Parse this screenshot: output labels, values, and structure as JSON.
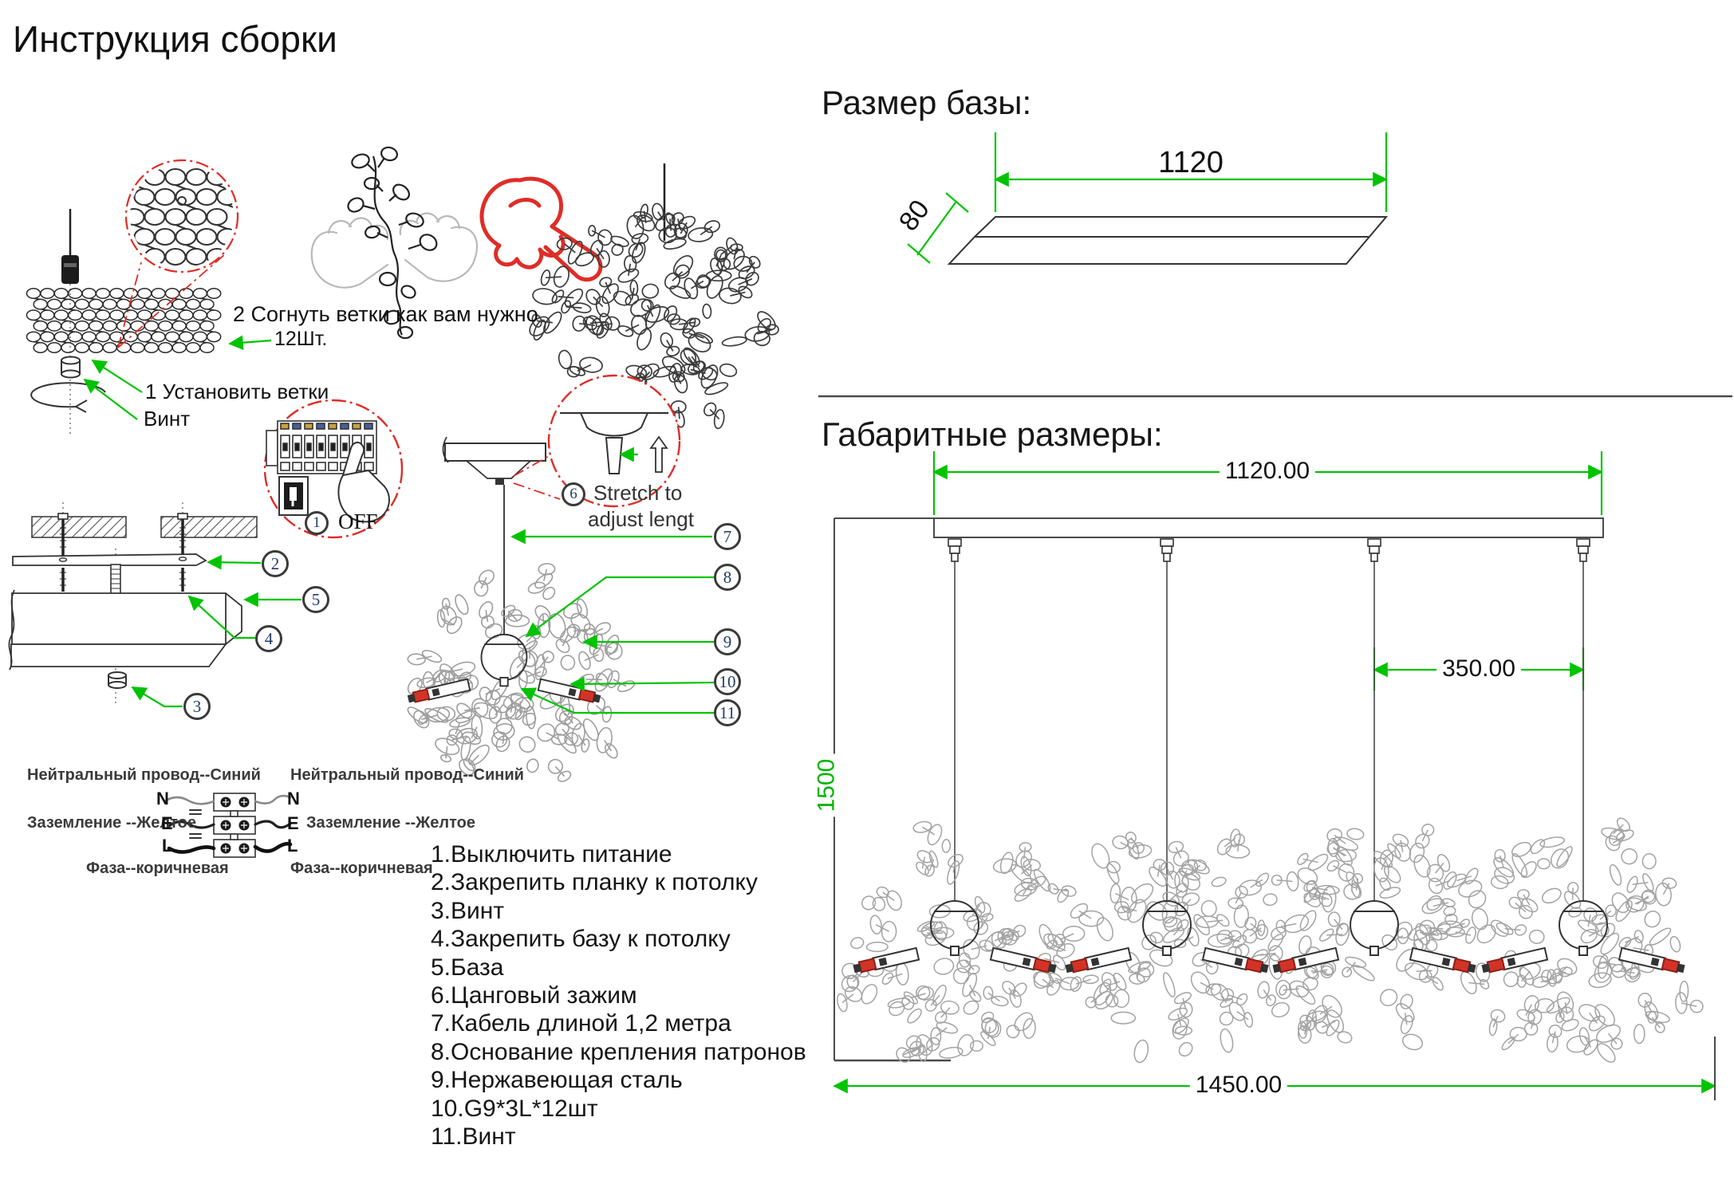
{
  "title": "Инструкция сборки",
  "left": {
    "step2_label": "2 Согнуть ветки как вам нужно",
    "qty_label": "12Шт.",
    "step1_label": "1 Установить ветки",
    "screw_label": "Винт",
    "off": {
      "num": "1",
      "label": "OFF"
    },
    "stretch": {
      "num": "6",
      "line1": "Stretch to",
      "line2": "adjust lengt"
    },
    "mount_callouts": {
      "bracket": "2",
      "base": "5",
      "screw": "4",
      "nut": "3"
    },
    "pendant_callouts": {
      "cable": "7",
      "socket_base": "8",
      "steel": "9",
      "bulb": "10",
      "screw": "11"
    },
    "wiring": {
      "neutral_label": "Нейтральный провод--Синий",
      "ground_label": "Заземление --Желтое",
      "phase_label": "Фаза--коричневая",
      "n": "N",
      "e": "E",
      "l": "L"
    },
    "parts_list": [
      "1.Выключить питание",
      "2.Закрепить планку к потолку",
      "3.Винт",
      "4.Закрепить базу к потолку",
      "5.База",
      "6.Цанговый зажим",
      "7.Кабель длиной 1,2 метра",
      "8.Основание крепления патронов",
      "9.Нержавеющая сталь",
      "10.G9*3L*12шт",
      "11.Винт"
    ]
  },
  "right": {
    "base_heading": "Размер базы:",
    "base_length": "1120",
    "base_width": "80",
    "overall_heading": "Габаритные размеры:",
    "overall_width": "1120.00",
    "spacing": "350.00",
    "drop_height": "1500",
    "total_width": "1450.00"
  },
  "colors": {
    "dimension_green": "#00c300",
    "accent_red": "#e02c26",
    "tangle_gray": "#9e9e9e",
    "ink": "#1a1a1a",
    "callout_ink": "#223c66",
    "bulb_red": "#d33327"
  }
}
